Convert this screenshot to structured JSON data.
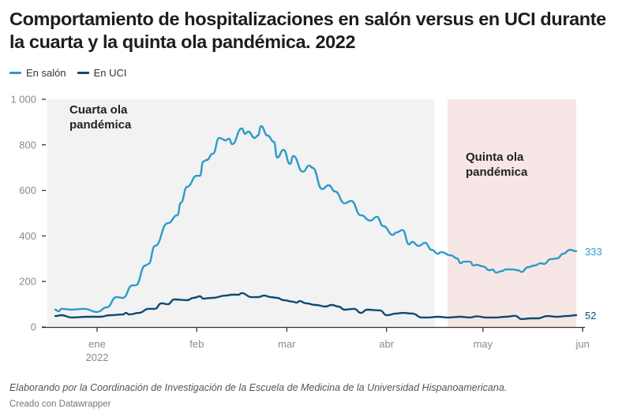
{
  "header": {
    "title": "Comportamiento de hospitalizaciones en salón versus en UCI durante la cuarta y la quinta ola pandémica. 2022"
  },
  "legend": [
    {
      "label": "En salón",
      "color": "#2a9bc9"
    },
    {
      "label": "En UCI",
      "color": "#0e4a72"
    }
  ],
  "footer": {
    "notes": "Elaborando por la Coordinación de Investigación de la Escuela de Medicina de la Universidad Hispanoamericana.",
    "credit": "Creado con Datawrapper"
  },
  "chart_data": {
    "type": "line",
    "title": "Comportamiento de hospitalizaciones en salón versus en UCI durante la cuarta y la quinta ola pandémica. 2022",
    "xlabel": "",
    "ylabel": "",
    "ylim": [
      0,
      1000
    ],
    "xlim": [
      "2021-12-15",
      "2022-06-01"
    ],
    "yticks": [
      {
        "value": 0,
        "label": "0"
      },
      {
        "value": 200,
        "label": "200"
      },
      {
        "value": 400,
        "label": "400"
      },
      {
        "value": 600,
        "label": "600"
      },
      {
        "value": 800,
        "label": "800"
      },
      {
        "value": 1000,
        "label": "1 000"
      }
    ],
    "xticks": [
      {
        "date": "2022-01-01",
        "label": "ene",
        "sublabel": "2022"
      },
      {
        "date": "2022-02-01",
        "label": "feb",
        "sublabel": ""
      },
      {
        "date": "2022-03-01",
        "label": "mar",
        "sublabel": ""
      },
      {
        "date": "2022-04-01",
        "label": "abr",
        "sublabel": ""
      },
      {
        "date": "2022-05-01",
        "label": "may",
        "sublabel": ""
      },
      {
        "date": "2022-06-01",
        "label": "jun",
        "sublabel": ""
      }
    ],
    "grid": false,
    "legend_position": "top-left",
    "ranges": [
      {
        "label_line1": "Cuarta ola",
        "label_line2": "pandémica",
        "start": "2021-12-15",
        "end": "2022-04-16",
        "color": "#f2f2f2"
      },
      {
        "label_line1": "Quinta ola",
        "label_line2": "pandémica",
        "start": "2022-04-20",
        "end": "2022-05-30",
        "color": "#f7e6e6"
      }
    ],
    "series": [
      {
        "name": "En salón",
        "color": "#2a9bc9",
        "end_label": "333",
        "points": [
          [
            "2021-12-19",
            76
          ],
          [
            "2021-12-20",
            69
          ],
          [
            "2021-12-21",
            80
          ],
          [
            "2021-12-24",
            76
          ],
          [
            "2021-12-28",
            80
          ],
          [
            "2022-01-01",
            66
          ],
          [
            "2022-01-04",
            86
          ],
          [
            "2022-01-07",
            131
          ],
          [
            "2022-01-09",
            128
          ],
          [
            "2022-01-12",
            183
          ],
          [
            "2022-01-13",
            183
          ],
          [
            "2022-01-16",
            270
          ],
          [
            "2022-01-17",
            277
          ],
          [
            "2022-01-19",
            356
          ],
          [
            "2022-01-23",
            456
          ],
          [
            "2022-01-26",
            491
          ],
          [
            "2022-01-27",
            545
          ],
          [
            "2022-01-29",
            616
          ],
          [
            "2022-02-01",
            664
          ],
          [
            "2022-02-02",
            664
          ],
          [
            "2022-02-03",
            727
          ],
          [
            "2022-02-04",
            733
          ],
          [
            "2022-02-06",
            761
          ],
          [
            "2022-02-08",
            830
          ],
          [
            "2022-02-10",
            820
          ],
          [
            "2022-02-11",
            827
          ],
          [
            "2022-02-12",
            803
          ],
          [
            "2022-02-15",
            872
          ],
          [
            "2022-02-16",
            848
          ],
          [
            "2022-02-17",
            858
          ],
          [
            "2022-02-19",
            830
          ],
          [
            "2022-02-20",
            841
          ],
          [
            "2022-02-21",
            882
          ],
          [
            "2022-02-23",
            841
          ],
          [
            "2022-02-25",
            813
          ],
          [
            "2022-02-26",
            744
          ],
          [
            "2022-02-28",
            778
          ],
          [
            "2022-03-02",
            716
          ],
          [
            "2022-03-03",
            751
          ],
          [
            "2022-03-06",
            682
          ],
          [
            "2022-03-08",
            709
          ],
          [
            "2022-03-09",
            699
          ],
          [
            "2022-03-12",
            606
          ],
          [
            "2022-03-14",
            623
          ],
          [
            "2022-03-16",
            595
          ],
          [
            "2022-03-19",
            543
          ],
          [
            "2022-03-21",
            554
          ],
          [
            "2022-03-24",
            491
          ],
          [
            "2022-03-27",
            467
          ],
          [
            "2022-03-29",
            484
          ],
          [
            "2022-03-31",
            443
          ],
          [
            "2022-04-03",
            405
          ],
          [
            "2022-04-04",
            415
          ],
          [
            "2022-04-06",
            426
          ],
          [
            "2022-04-08",
            363
          ],
          [
            "2022-04-09",
            374
          ],
          [
            "2022-04-11",
            356
          ],
          [
            "2022-04-13",
            370
          ],
          [
            "2022-04-15",
            339
          ],
          [
            "2022-04-17",
            322
          ],
          [
            "2022-04-18",
            329
          ],
          [
            "2022-04-21",
            315
          ],
          [
            "2022-04-23",
            301
          ],
          [
            "2022-04-24",
            280
          ],
          [
            "2022-04-25",
            287
          ],
          [
            "2022-04-27",
            287
          ],
          [
            "2022-04-28",
            270
          ],
          [
            "2022-04-29",
            273
          ],
          [
            "2022-05-01",
            266
          ],
          [
            "2022-05-03",
            249
          ],
          [
            "2022-05-04",
            253
          ],
          [
            "2022-05-05",
            239
          ],
          [
            "2022-05-07",
            246
          ],
          [
            "2022-05-08",
            253
          ],
          [
            "2022-05-10",
            253
          ],
          [
            "2022-05-12",
            249
          ],
          [
            "2022-05-13",
            242
          ],
          [
            "2022-05-15",
            263
          ],
          [
            "2022-05-17",
            270
          ],
          [
            "2022-05-19",
            280
          ],
          [
            "2022-05-20",
            277
          ],
          [
            "2022-05-22",
            298
          ],
          [
            "2022-05-24",
            301
          ],
          [
            "2022-05-26",
            322
          ],
          [
            "2022-05-28",
            339
          ],
          [
            "2022-05-30",
            333
          ]
        ]
      },
      {
        "name": "En UCI",
        "color": "#0e4a72",
        "end_label": "52",
        "points": [
          [
            "2021-12-19",
            48
          ],
          [
            "2021-12-21",
            52
          ],
          [
            "2021-12-24",
            42
          ],
          [
            "2021-12-29",
            45
          ],
          [
            "2022-01-02",
            45
          ],
          [
            "2022-01-05",
            52
          ],
          [
            "2022-01-09",
            55
          ],
          [
            "2022-01-10",
            62
          ],
          [
            "2022-01-11",
            55
          ],
          [
            "2022-01-14",
            62
          ],
          [
            "2022-01-17",
            80
          ],
          [
            "2022-01-19",
            80
          ],
          [
            "2022-01-21",
            104
          ],
          [
            "2022-01-23",
            100
          ],
          [
            "2022-01-25",
            121
          ],
          [
            "2022-01-29",
            118
          ],
          [
            "2022-01-31",
            128
          ],
          [
            "2022-02-02",
            135
          ],
          [
            "2022-02-03",
            125
          ],
          [
            "2022-02-06",
            128
          ],
          [
            "2022-02-10",
            138
          ],
          [
            "2022-02-12",
            142
          ],
          [
            "2022-02-14",
            142
          ],
          [
            "2022-02-15",
            149
          ],
          [
            "2022-02-18",
            131
          ],
          [
            "2022-02-20",
            131
          ],
          [
            "2022-02-22",
            138
          ],
          [
            "2022-02-24",
            131
          ],
          [
            "2022-02-26",
            128
          ],
          [
            "2022-02-28",
            118
          ],
          [
            "2022-03-03",
            111
          ],
          [
            "2022-03-04",
            107
          ],
          [
            "2022-03-05",
            114
          ],
          [
            "2022-03-07",
            104
          ],
          [
            "2022-03-10",
            97
          ],
          [
            "2022-03-13",
            90
          ],
          [
            "2022-03-15",
            97
          ],
          [
            "2022-03-17",
            90
          ],
          [
            "2022-03-19",
            76
          ],
          [
            "2022-03-22",
            80
          ],
          [
            "2022-03-24",
            62
          ],
          [
            "2022-03-26",
            76
          ],
          [
            "2022-03-30",
            73
          ],
          [
            "2022-04-01",
            52
          ],
          [
            "2022-04-04",
            59
          ],
          [
            "2022-04-06",
            62
          ],
          [
            "2022-04-09",
            59
          ],
          [
            "2022-04-12",
            42
          ],
          [
            "2022-04-14",
            42
          ],
          [
            "2022-04-17",
            45
          ],
          [
            "2022-04-20",
            42
          ],
          [
            "2022-04-24",
            45
          ],
          [
            "2022-04-27",
            42
          ],
          [
            "2022-04-29",
            47
          ],
          [
            "2022-05-02",
            42
          ],
          [
            "2022-05-05",
            42
          ],
          [
            "2022-05-08",
            45
          ],
          [
            "2022-05-11",
            49
          ],
          [
            "2022-05-13",
            35
          ],
          [
            "2022-05-16",
            38
          ],
          [
            "2022-05-18",
            38
          ],
          [
            "2022-05-21",
            48
          ],
          [
            "2022-05-24",
            45
          ],
          [
            "2022-05-27",
            48
          ],
          [
            "2022-05-30",
            52
          ]
        ]
      }
    ]
  }
}
